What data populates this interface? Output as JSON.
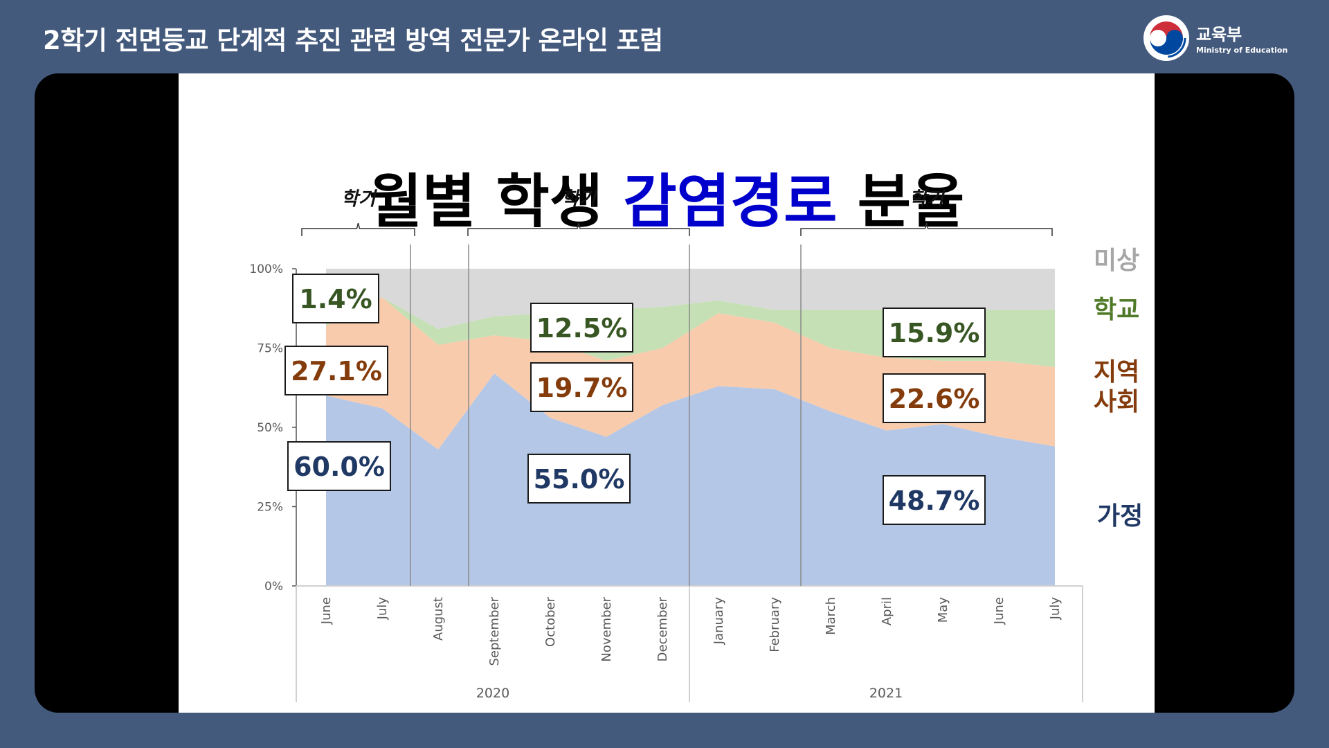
{
  "header": {
    "title": "2학기 전면등교 단계적 추진 관련 방역 전문가 온라인 포럼"
  },
  "logo": {
    "name_ko": "교육부",
    "name_en": "Ministry of Education",
    "icon": "taegeuk-emblem-icon"
  },
  "slide": {
    "title_black_1": "월별 학생 ",
    "title_blue": "감염경로",
    "title_black_2": " 분율",
    "semester_labels": [
      "학기",
      "학기",
      "학기"
    ],
    "legend": [
      "미상",
      "학교",
      "지역",
      "사회",
      "가정"
    ],
    "callouts": [
      {
        "text": "1.4%",
        "color": "#375623"
      },
      {
        "text": "27.1%",
        "color": "#843c0c"
      },
      {
        "text": "60.0%",
        "color": "#1f3864"
      },
      {
        "text": "12.5%",
        "color": "#375623"
      },
      {
        "text": "19.7%",
        "color": "#843c0c"
      },
      {
        "text": "55.0%",
        "color": "#1f3864"
      },
      {
        "text": "15.9%",
        "color": "#375623"
      },
      {
        "text": "22.6%",
        "color": "#843c0c"
      },
      {
        "text": "48.7%",
        "color": "#1f3864"
      }
    ]
  },
  "chart_data": {
    "type": "area",
    "stacked": true,
    "percent": true,
    "categories": [
      "June",
      "July",
      "August",
      "September",
      "October",
      "November",
      "December",
      "January",
      "February",
      "March",
      "April",
      "May",
      "June",
      "July"
    ],
    "year_labels": [
      "2020",
      "2021"
    ],
    "y_ticks": [
      "0%",
      "25%",
      "50%",
      "75%",
      "100%"
    ],
    "ylim": [
      0,
      100
    ],
    "series": [
      {
        "name": "가정",
        "color": "#b4c7e7",
        "values": [
          60,
          56,
          43,
          67,
          53,
          47,
          57,
          63,
          62,
          55,
          49,
          51,
          47,
          44
        ]
      },
      {
        "name": "지역 사회",
        "color": "#f8cbad",
        "values": [
          22,
          35,
          33,
          12,
          24,
          24,
          18,
          23,
          21,
          20,
          23,
          20,
          24,
          25
        ]
      },
      {
        "name": "학교",
        "color": "#c5e0b4",
        "values": [
          1,
          0,
          5,
          6,
          9,
          16,
          13,
          4,
          4,
          12,
          15,
          16,
          16,
          18
        ]
      },
      {
        "name": "미상",
        "color": "#d9d9d9",
        "values": [
          17,
          9,
          19,
          15,
          14,
          13,
          12,
          10,
          13,
          13,
          13,
          13,
          13,
          13
        ]
      }
    ],
    "grid": false
  }
}
